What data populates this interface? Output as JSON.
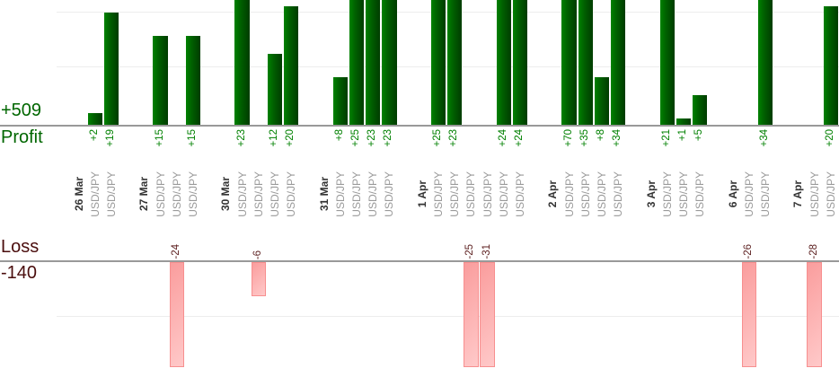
{
  "chart_data": {
    "type": "bar",
    "title": "",
    "legend": "none",
    "grid": "on",
    "gridline_interval_units": 10,
    "visible_profit_range": [
      0,
      21
    ],
    "visible_loss_range": [
      -19,
      0
    ],
    "profit_section": {
      "axis_label": "Profit",
      "total_label": "+509"
    },
    "loss_section": {
      "axis_label": "Loss",
      "total_label": "-140"
    },
    "groups": [
      {
        "date": "26 Mar",
        "trades": [
          {
            "symbol": "USD/JPY",
            "value": 2,
            "label": "+2"
          },
          {
            "symbol": "USD/JPY",
            "value": 19,
            "label": "+19"
          }
        ]
      },
      {
        "date": "27 Mar",
        "trades": [
          {
            "symbol": "USD/JPY",
            "value": 15,
            "label": "+15"
          },
          {
            "symbol": "USD/JPY",
            "value": -24,
            "label": "-24"
          },
          {
            "symbol": "USD/JPY",
            "value": 15,
            "label": "+15"
          }
        ]
      },
      {
        "date": "30 Mar",
        "trades": [
          {
            "symbol": "USD/JPY",
            "value": 23,
            "label": "+23"
          },
          {
            "symbol": "USD/JPY",
            "value": -6,
            "label": "-6"
          },
          {
            "symbol": "USD/JPY",
            "value": 12,
            "label": "+12"
          },
          {
            "symbol": "USD/JPY",
            "value": 20,
            "label": "+20"
          }
        ]
      },
      {
        "date": "31 Mar",
        "trades": [
          {
            "symbol": "USD/JPY",
            "value": 8,
            "label": "+8"
          },
          {
            "symbol": "USD/JPY",
            "value": 25,
            "label": "+25"
          },
          {
            "symbol": "USD/JPY",
            "value": 23,
            "label": "+23"
          },
          {
            "symbol": "USD/JPY",
            "value": 23,
            "label": "+23"
          }
        ]
      },
      {
        "date": "1 Apr",
        "trades": [
          {
            "symbol": "USD/JPY",
            "value": 25,
            "label": "+25"
          },
          {
            "symbol": "USD/JPY",
            "value": 23,
            "label": "+23"
          },
          {
            "symbol": "USD/JPY",
            "value": -25,
            "label": "-25"
          },
          {
            "symbol": "USD/JPY",
            "value": -31,
            "label": "-31"
          },
          {
            "symbol": "USD/JPY",
            "value": 24,
            "label": "+24"
          },
          {
            "symbol": "USD/JPY",
            "value": 24,
            "label": "+24"
          }
        ]
      },
      {
        "date": "2 Apr",
        "trades": [
          {
            "symbol": "USD/JPY",
            "value": 70,
            "label": "+70"
          },
          {
            "symbol": "USD/JPY",
            "value": 35,
            "label": "+35"
          },
          {
            "symbol": "USD/JPY",
            "value": 8,
            "label": "+8"
          },
          {
            "symbol": "USD/JPY",
            "value": 34,
            "label": "+34"
          }
        ]
      },
      {
        "date": "3 Apr",
        "trades": [
          {
            "symbol": "USD/JPY",
            "value": 21,
            "label": "+21"
          },
          {
            "symbol": "USD/JPY",
            "value": 1,
            "label": "+1"
          },
          {
            "symbol": "USD/JPY",
            "value": 5,
            "label": "+5"
          }
        ]
      },
      {
        "date": "6 Apr",
        "trades": [
          {
            "symbol": "USD/JPY",
            "value": -26,
            "label": "-26"
          },
          {
            "symbol": "USD/JPY",
            "value": 34,
            "label": "+34"
          }
        ]
      },
      {
        "date": "7 Apr",
        "trades": [
          {
            "symbol": "USD/JPY",
            "value": -28,
            "label": "-28"
          },
          {
            "symbol": "USD/JPY",
            "value": 20,
            "label": "+20"
          }
        ]
      }
    ]
  },
  "colors": {
    "profit_text": "#006600",
    "profit_value_label": "#008000",
    "loss_text": "#4a0d0d",
    "loss_value_label": "#5c1f1f",
    "date_label": "#333333",
    "symbol_label": "#9a9a9a",
    "axis_line": "#999999",
    "grid_line": "#ededed",
    "bar_green_light": "#008200",
    "bar_green_dark": "#003c00",
    "bar_pink_light": "#ffc9c9",
    "bar_pink_dark": "#fa9d9d",
    "bar_pink_border": "#f78f8f"
  }
}
